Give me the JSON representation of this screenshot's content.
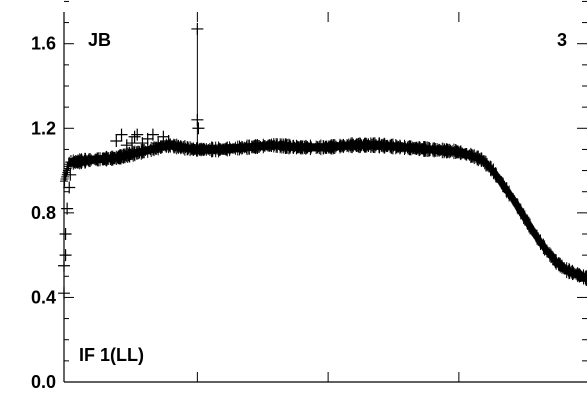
{
  "chart_data": {
    "type": "scatter",
    "title": "",
    "xlabel": "",
    "ylabel": "",
    "ylim": [
      0.0,
      1.75
    ],
    "yticks": [
      {
        "value": 0.0,
        "label": "0.0"
      },
      {
        "value": 0.4,
        "label": "0.4"
      },
      {
        "value": 0.8,
        "label": "0.8"
      },
      {
        "value": 1.2,
        "label": "1.2"
      },
      {
        "value": 1.6,
        "label": "1.6"
      }
    ],
    "yminor_step": 0.1,
    "xmajor_ticks": [
      0.255,
      0.505,
      0.755
    ],
    "xlim": [
      0.0,
      1.0
    ],
    "grid": false,
    "marker": "plus",
    "color": "#000000",
    "annotations": {
      "top_left": "JB",
      "top_right": "3",
      "bottom_left": "IF 1(LL)"
    },
    "series": [
      {
        "x": [
          0.0,
          0.01,
          0.02,
          0.05,
          0.1,
          0.15,
          0.2,
          0.25,
          0.3,
          0.35,
          0.4,
          0.45,
          0.5,
          0.55,
          0.6,
          0.65,
          0.7,
          0.75,
          0.78,
          0.8,
          0.82,
          0.84,
          0.86,
          0.88,
          0.9,
          0.92,
          0.94,
          0.96,
          0.98,
          1.0
        ],
        "y": [
          0.95,
          1.04,
          1.04,
          1.05,
          1.06,
          1.09,
          1.12,
          1.1,
          1.1,
          1.11,
          1.12,
          1.11,
          1.11,
          1.12,
          1.12,
          1.11,
          1.1,
          1.09,
          1.07,
          1.05,
          1.0,
          0.93,
          0.86,
          0.78,
          0.7,
          0.63,
          0.57,
          0.53,
          0.51,
          0.49
        ]
      },
      {
        "x": [
          0.0,
          0.0,
          0.003,
          0.003,
          0.006,
          0.01,
          0.012,
          0.1,
          0.11,
          0.12,
          0.13,
          0.135,
          0.14,
          0.15,
          0.16,
          0.17,
          0.18,
          0.19,
          0.2,
          0.255,
          0.255,
          0.257
        ],
        "y": [
          0.42,
          0.55,
          0.6,
          0.7,
          0.82,
          0.92,
          0.98,
          1.14,
          1.17,
          1.12,
          1.13,
          1.16,
          1.17,
          1.13,
          1.15,
          1.17,
          1.13,
          1.16,
          1.14,
          1.67,
          1.24,
          1.2
        ]
      }
    ]
  }
}
